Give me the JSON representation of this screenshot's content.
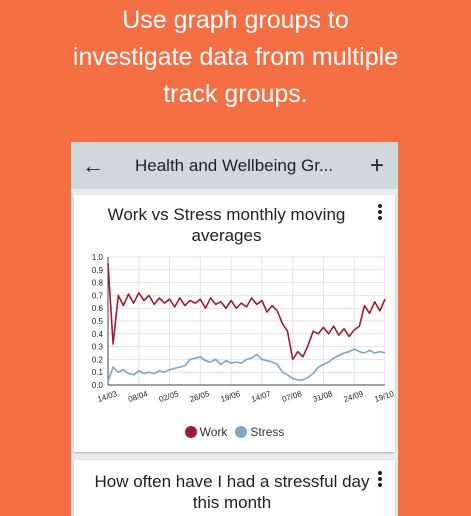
{
  "headline": {
    "line1": "Use graph groups to",
    "line2": "investigate data from multiple",
    "line3": "track groups."
  },
  "appbar": {
    "title": "Health and Wellbeing Gr...",
    "back_icon": "arrow-left-icon",
    "add_icon": "plus-icon"
  },
  "cards": [
    {
      "title_line1": "Work vs Stress monthly moving",
      "title_line2": "averages",
      "menu_icon": "more-vert-icon"
    },
    {
      "title_line1": "How often have I had a stressful day",
      "title_line2": "this month",
      "menu_icon": "more-vert-icon"
    }
  ],
  "chart_data": {
    "type": "line",
    "title": "Work vs Stress monthly moving averages",
    "ylim": [
      0,
      1.0
    ],
    "yticks": [
      "0.0",
      "0.1",
      "0.2",
      "0.3",
      "0.4",
      "0.5",
      "0.6",
      "0.7",
      "0.8",
      "0.9",
      "1.0"
    ],
    "xticks": [
      "14/03",
      "08/04",
      "02/05",
      "26/05",
      "19/06",
      "14/07",
      "07/08",
      "31/08",
      "24/09",
      "19/10"
    ],
    "grid": true,
    "legend": "bottom",
    "x": [
      "14/03",
      "18/03",
      "22/03",
      "26/03",
      "30/03",
      "03/04",
      "08/04",
      "12/04",
      "16/04",
      "20/04",
      "24/04",
      "28/04",
      "02/05",
      "06/05",
      "10/05",
      "14/05",
      "18/05",
      "22/05",
      "26/05",
      "30/05",
      "03/06",
      "07/06",
      "11/06",
      "15/06",
      "19/06",
      "23/06",
      "27/06",
      "01/07",
      "05/07",
      "09/07",
      "14/07",
      "18/07",
      "22/07",
      "26/07",
      "30/07",
      "03/08",
      "07/08",
      "11/08",
      "15/08",
      "19/08",
      "23/08",
      "27/08",
      "31/08",
      "04/09",
      "08/09",
      "12/09",
      "16/09",
      "20/09",
      "24/09",
      "28/09",
      "02/10",
      "06/10",
      "10/10",
      "14/10",
      "19/10"
    ],
    "series": [
      {
        "name": "Work",
        "color": "#A01C33",
        "values": [
          0.95,
          0.32,
          0.7,
          0.62,
          0.71,
          0.64,
          0.72,
          0.66,
          0.7,
          0.63,
          0.68,
          0.64,
          0.67,
          0.61,
          0.68,
          0.62,
          0.66,
          0.64,
          0.67,
          0.6,
          0.68,
          0.63,
          0.65,
          0.6,
          0.66,
          0.6,
          0.64,
          0.61,
          0.68,
          0.63,
          0.66,
          0.57,
          0.62,
          0.58,
          0.48,
          0.42,
          0.2,
          0.26,
          0.22,
          0.31,
          0.42,
          0.4,
          0.45,
          0.4,
          0.46,
          0.39,
          0.44,
          0.38,
          0.43,
          0.46,
          0.62,
          0.56,
          0.65,
          0.58,
          0.67
        ]
      },
      {
        "name": "Stress",
        "color": "#7EA6C9",
        "values": [
          0.03,
          0.14,
          0.1,
          0.12,
          0.09,
          0.08,
          0.11,
          0.09,
          0.1,
          0.09,
          0.11,
          0.1,
          0.12,
          0.13,
          0.14,
          0.15,
          0.2,
          0.21,
          0.22,
          0.19,
          0.18,
          0.2,
          0.16,
          0.19,
          0.17,
          0.18,
          0.17,
          0.2,
          0.21,
          0.24,
          0.2,
          0.19,
          0.18,
          0.16,
          0.1,
          0.08,
          0.05,
          0.04,
          0.04,
          0.06,
          0.09,
          0.14,
          0.16,
          0.18,
          0.21,
          0.23,
          0.25,
          0.26,
          0.28,
          0.26,
          0.25,
          0.27,
          0.25,
          0.26,
          0.25
        ]
      }
    ]
  }
}
